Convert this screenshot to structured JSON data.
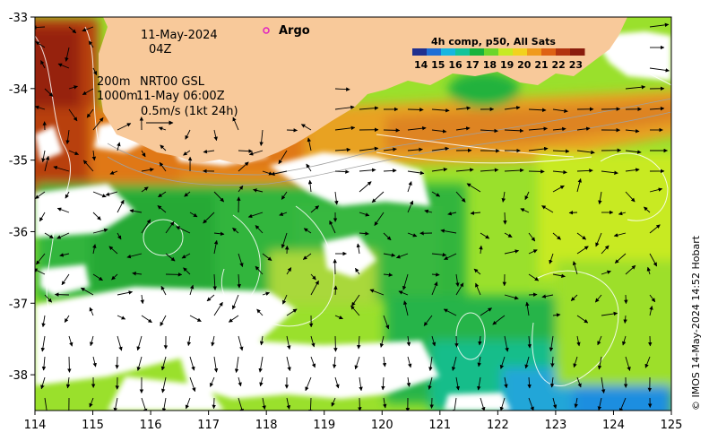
{
  "map": {
    "date_label": "11-May-2024",
    "hour_label": "04Z",
    "argo_label": "Argo",
    "isobath_200": "200m",
    "isobath_1000": "1000m",
    "product_label": "NRT00 GSL",
    "product_time": "11-May 06:00Z",
    "scale_label": "0.5m/s (1kt 24h)",
    "credit": "© IMOS 14-May-2024 14:52 Hobart",
    "colorbar_title": "4h comp, p50, All Sats",
    "colorbar_ticks": [
      "14",
      "15",
      "16",
      "17",
      "18",
      "19",
      "20",
      "21",
      "22",
      "23"
    ],
    "x_ticks": [
      "114",
      "115",
      "116",
      "117",
      "118",
      "119",
      "120",
      "121",
      "122",
      "123",
      "124",
      "125"
    ],
    "y_ticks": [
      "-33",
      "-34",
      "-35",
      "-36",
      "-37",
      "-38"
    ],
    "lon_range": [
      114,
      125
    ],
    "lat_range": [
      -38.5,
      -33
    ],
    "sst_range": [
      13.5,
      23.5
    ],
    "colors": {
      "land": "#f8c99a",
      "no_data": "#ffffff",
      "colormap": [
        "#20308f",
        "#1f6fd6",
        "#17b6e0",
        "#13c49a",
        "#18b33b",
        "#6dd62a",
        "#c7ea22",
        "#f2d21e",
        "#f09a1c",
        "#de6114",
        "#b23410",
        "#8a1c0c"
      ]
    }
  }
}
